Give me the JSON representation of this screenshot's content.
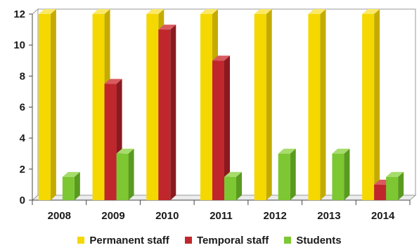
{
  "chart_data": {
    "type": "bar",
    "categories": [
      "2008",
      "2009",
      "2010",
      "2011",
      "2012",
      "2013",
      "2014"
    ],
    "series": [
      {
        "name": "Permanent staff",
        "values": [
          12,
          12,
          12,
          12,
          12,
          12,
          12
        ],
        "color": "#f5d800",
        "side": "#c4ab00",
        "top": "#fbe866"
      },
      {
        "name": "Temporal staff",
        "values": [
          0,
          7.5,
          11,
          9,
          0,
          0,
          1
        ],
        "color": "#c0272d",
        "side": "#8a1a1f",
        "top": "#d85a5f"
      },
      {
        "name": "Students",
        "values": [
          1.5,
          3,
          0,
          1.5,
          3,
          3,
          1.5
        ],
        "color": "#7dc733",
        "side": "#5a9a1f",
        "top": "#a6dc6b"
      }
    ],
    "yticks": [
      0,
      2,
      4,
      6,
      8,
      10,
      12
    ],
    "ylim": [
      0,
      12
    ],
    "grid": false,
    "legend_position": "bottom"
  }
}
